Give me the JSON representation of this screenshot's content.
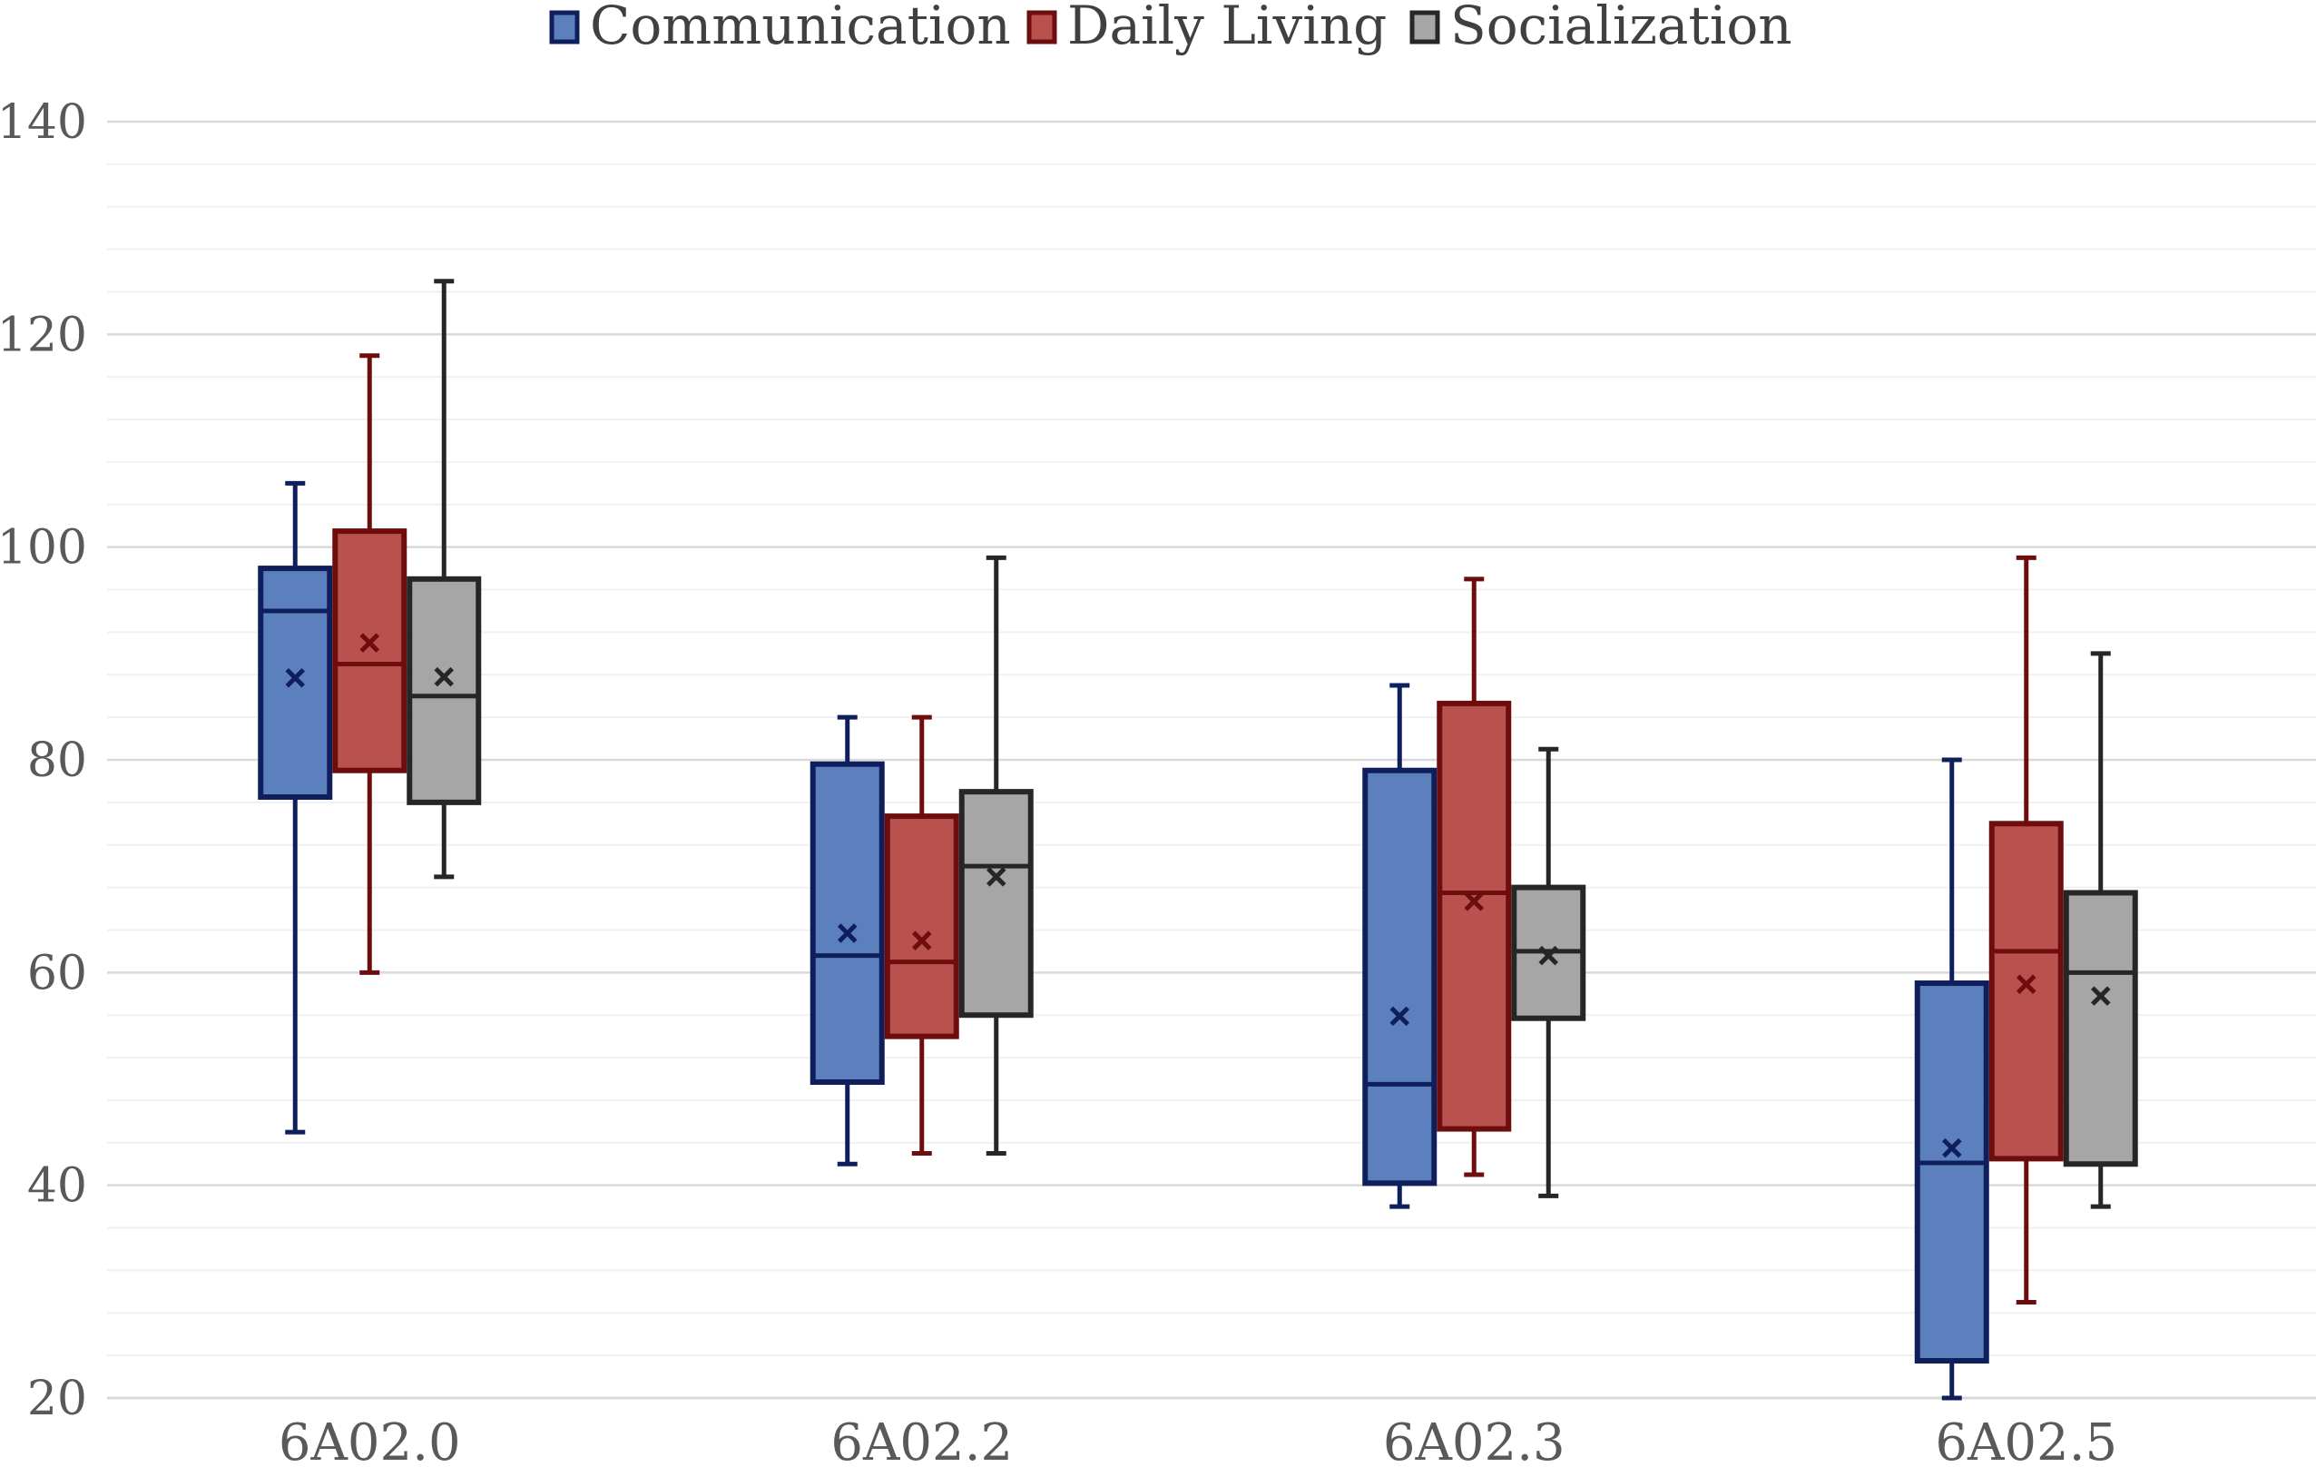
{
  "chart_data": {
    "type": "boxplot",
    "title": "",
    "xlabel": "",
    "ylabel": "",
    "ylim": [
      20,
      140
    ],
    "y_ticks": [
      20,
      40,
      60,
      80,
      100,
      120,
      140
    ],
    "grid": true,
    "legend_position": "top",
    "categories": [
      "6A02.0",
      "6A02.2",
      "6A02.3",
      "6A02.5"
    ],
    "series": [
      {
        "name": "Communication",
        "fill": "#5b80bd",
        "stroke": "#0f1f5c",
        "boxes": [
          {
            "min": 45,
            "q1": 76.5,
            "median": 94,
            "q3": 98,
            "max": 106,
            "mean": 87.7
          },
          {
            "min": 42,
            "q1": 49.7,
            "median": 61.6,
            "q3": 79.6,
            "max": 84,
            "mean": 63.7
          },
          {
            "min": 38,
            "q1": 40.2,
            "median": 49.5,
            "q3": 79,
            "max": 87,
            "mean": 55.9
          },
          {
            "min": 20,
            "q1": 23.5,
            "median": 42.1,
            "q3": 59,
            "max": 80,
            "mean": 43.5
          }
        ]
      },
      {
        "name": "Daily Living",
        "fill": "#b9514e",
        "stroke": "#6e0d0d",
        "boxes": [
          {
            "min": 60,
            "q1": 79,
            "median": 89,
            "q3": 101.5,
            "max": 118,
            "mean": 91
          },
          {
            "min": 43,
            "q1": 54,
            "median": 61,
            "q3": 74.7,
            "max": 84,
            "mean": 63
          },
          {
            "min": 41,
            "q1": 45.3,
            "median": 67.5,
            "q3": 85.3,
            "max": 97,
            "mean": 66.7
          },
          {
            "min": 29,
            "q1": 42.5,
            "median": 62,
            "q3": 74,
            "max": 99,
            "mean": 58.9
          }
        ]
      },
      {
        "name": "Socialization",
        "fill": "#a6a6a6",
        "stroke": "#262626",
        "boxes": [
          {
            "min": 69,
            "q1": 76,
            "median": 86,
            "q3": 97,
            "max": 125,
            "mean": 87.8
          },
          {
            "min": 43,
            "q1": 56,
            "median": 70,
            "q3": 77,
            "max": 99,
            "mean": 69
          },
          {
            "min": 39,
            "q1": 55.7,
            "median": 62,
            "q3": 68,
            "max": 81,
            "mean": 61.6
          },
          {
            "min": 38,
            "q1": 42,
            "median": 60,
            "q3": 67.5,
            "max": 90,
            "mean": 57.8
          }
        ]
      }
    ]
  }
}
